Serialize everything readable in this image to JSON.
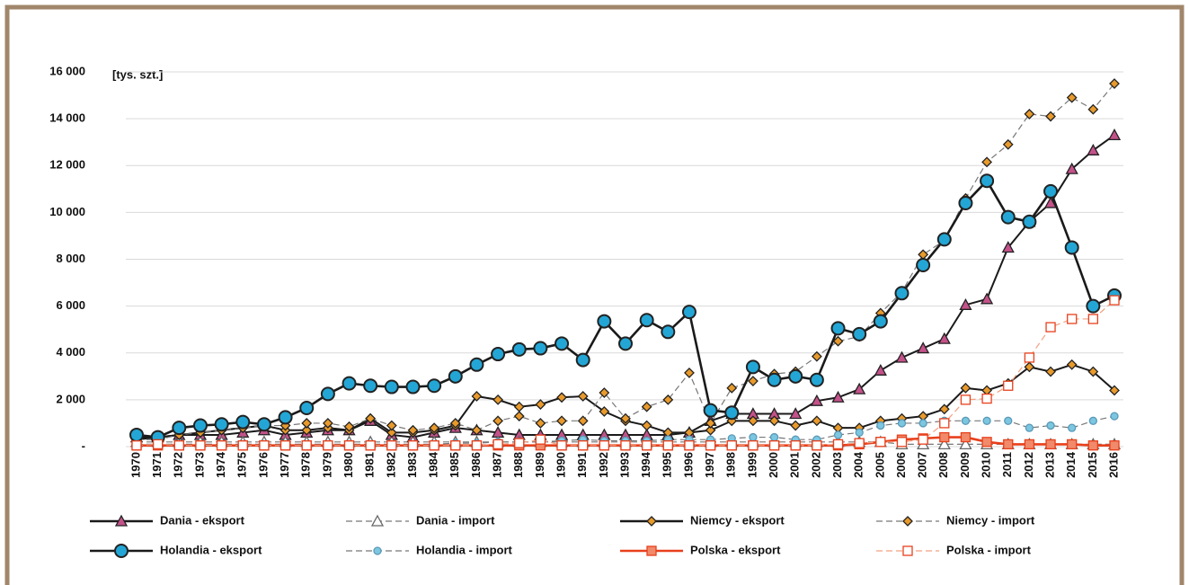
{
  "chart_data": {
    "type": "line",
    "y_unit_label": "[tys. szt.]",
    "categories": [
      "1970",
      "1971",
      "1972",
      "1973",
      "1974",
      "1975",
      "1976",
      "1977",
      "1978",
      "1979",
      "1980",
      "1981",
      "1982",
      "1983",
      "1984",
      "1985",
      "1986",
      "1987",
      "1988",
      "1989",
      "1990",
      "1991",
      "1992",
      "1993",
      "1994",
      "1995",
      "1996",
      "1997",
      "1998",
      "1999",
      "2000",
      "2001",
      "2002",
      "2003",
      "2004",
      "2005",
      "2006",
      "2007",
      "2008",
      "2009",
      "2010",
      "2011",
      "2012",
      "2013",
      "2014",
      "2015",
      "2016"
    ],
    "ylim": [
      0,
      16000
    ],
    "yticks": [
      {
        "value": 0,
        "label": "-"
      },
      {
        "value": 2000,
        "label": "2 000"
      },
      {
        "value": 4000,
        "label": "4 000"
      },
      {
        "value": 6000,
        "label": "6 000"
      },
      {
        "value": 8000,
        "label": "8 000"
      },
      {
        "value": 10000,
        "label": "10 000"
      },
      {
        "value": 12000,
        "label": "12 000"
      },
      {
        "value": 14000,
        "label": "14 000"
      },
      {
        "value": 16000,
        "label": "16 000"
      }
    ],
    "grid": true,
    "legend": "bottom",
    "series": [
      {
        "name": "Dania - eksport",
        "color": "#1a1a1a",
        "marker": "triangle",
        "marker_color": "#c4528a",
        "dashed": false,
        "values": [
          400,
          400,
          500,
          500,
          500,
          600,
          700,
          500,
          600,
          700,
          700,
          1100,
          500,
          400,
          600,
          800,
          700,
          600,
          500,
          500,
          500,
          500,
          500,
          500,
          500,
          500,
          600,
          1100,
          1400,
          1400,
          1400,
          1400,
          1950,
          2100,
          2450,
          3250,
          3800,
          4200,
          4600,
          6050,
          6300,
          8500,
          9600,
          10400,
          11850,
          12650,
          13300
        ]
      },
      {
        "name": "Dania - import",
        "color": "#777777",
        "marker": "triangle",
        "marker_color": "#ffffff",
        "dashed": true,
        "values": [
          200,
          200,
          200,
          200,
          200,
          200,
          200,
          200,
          200,
          200,
          200,
          200,
          200,
          200,
          200,
          200,
          200,
          200,
          200,
          200,
          200,
          200,
          200,
          200,
          200,
          200,
          200,
          200,
          200,
          200,
          200,
          200,
          200,
          200,
          200,
          200,
          100,
          100,
          100,
          100,
          100,
          100,
          100,
          100,
          100,
          100,
          100
        ]
      },
      {
        "name": "Niemcy - eksport",
        "color": "#1a1a1a",
        "marker": "diamond",
        "marker_color": "#e89a2c",
        "dashed": false,
        "values": [
          300,
          400,
          500,
          600,
          700,
          800,
          900,
          700,
          700,
          800,
          700,
          1200,
          600,
          600,
          700,
          900,
          2150,
          2000,
          1700,
          1800,
          2100,
          2150,
          1500,
          1100,
          900,
          600,
          600,
          700,
          1100,
          1100,
          1100,
          900,
          1100,
          800,
          800,
          1100,
          1200,
          1300,
          1600,
          2500,
          2400,
          2700,
          3400,
          3200,
          3500,
          3200,
          2400
        ]
      },
      {
        "name": "Niemcy - import",
        "color": "#777777",
        "marker": "diamond",
        "marker_color": "#e89a2c",
        "dashed": true,
        "values": [
          300,
          300,
          500,
          600,
          700,
          800,
          900,
          900,
          1000,
          1000,
          850,
          1200,
          900,
          700,
          800,
          1000,
          700,
          1100,
          1300,
          1000,
          1100,
          1100,
          2300,
          1200,
          1700,
          2000,
          3150,
          1000,
          2500,
          2800,
          3100,
          3200,
          3850,
          4500,
          4700,
          5700,
          6600,
          8200,
          8800,
          10600,
          12150,
          12900,
          14200,
          14100,
          14900,
          14400,
          15500
        ]
      },
      {
        "name": "Holandia - eksport",
        "color": "#1a1a1a",
        "marker": "circle",
        "marker_color": "#23a6d5",
        "dashed": false,
        "values": [
          500,
          400,
          800,
          900,
          950,
          1050,
          950,
          1250,
          1650,
          2250,
          2700,
          2600,
          2550,
          2550,
          2600,
          3000,
          3500,
          3950,
          4150,
          4200,
          4400,
          3700,
          5350,
          4400,
          5400,
          4900,
          5750,
          1550,
          1450,
          3400,
          2850,
          3000,
          2850,
          5050,
          4800,
          5350,
          6550,
          7750,
          8850,
          10400,
          11350,
          9800,
          9600,
          10900,
          8500,
          6000,
          6450
        ]
      },
      {
        "name": "Holandia - import",
        "color": "#777777",
        "marker": "small-circle",
        "marker_color": "#7cc6e0",
        "dashed": true,
        "values": [
          100,
          100,
          100,
          100,
          100,
          100,
          100,
          100,
          100,
          100,
          100,
          100,
          100,
          100,
          100,
          150,
          150,
          200,
          200,
          200,
          250,
          300,
          250,
          250,
          250,
          300,
          300,
          300,
          350,
          400,
          400,
          300,
          300,
          500,
          600,
          900,
          1000,
          1000,
          1100,
          1100,
          1100,
          1100,
          800,
          900,
          800,
          1100,
          1300
        ]
      },
      {
        "name": "Polska - eksport",
        "color": "#e8401c",
        "marker": "square",
        "marker_color": "#f08a6a",
        "dashed": false,
        "values": [
          50,
          50,
          50,
          50,
          50,
          50,
          50,
          50,
          50,
          50,
          50,
          50,
          50,
          50,
          50,
          50,
          50,
          50,
          50,
          50,
          50,
          50,
          50,
          50,
          50,
          50,
          50,
          50,
          50,
          50,
          50,
          50,
          50,
          50,
          100,
          200,
          300,
          350,
          400,
          400,
          200,
          100,
          100,
          100,
          100,
          50,
          50
        ]
      },
      {
        "name": "Polska - import",
        "color": "#f2a080",
        "marker": "square",
        "marker_color": "#ffffff",
        "dashed": true,
        "values": [
          50,
          100,
          50,
          50,
          50,
          50,
          50,
          50,
          50,
          50,
          50,
          50,
          50,
          50,
          50,
          50,
          50,
          100,
          150,
          300,
          50,
          50,
          50,
          50,
          50,
          50,
          50,
          50,
          50,
          50,
          50,
          50,
          50,
          100,
          150,
          200,
          200,
          300,
          1000,
          2000,
          2050,
          2600,
          3800,
          5100,
          5450,
          5450,
          6250
        ]
      }
    ]
  }
}
